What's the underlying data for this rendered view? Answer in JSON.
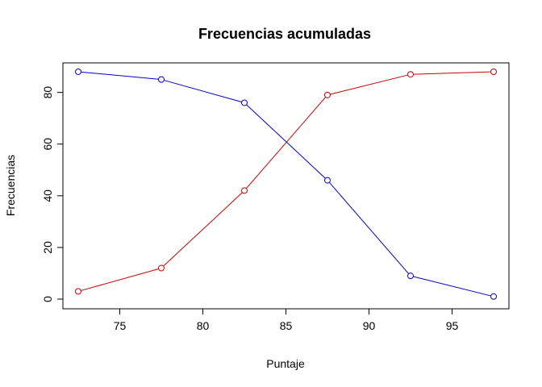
{
  "chart_data": {
    "type": "line",
    "title": "Frecuencias acumuladas",
    "xlabel": "Puntaje",
    "ylabel": "Frecuencias",
    "xlim": [
      72.5,
      97.5
    ],
    "ylim": [
      0,
      88
    ],
    "x_ticks": [
      75,
      80,
      85,
      90,
      95
    ],
    "y_ticks": [
      0,
      20,
      40,
      60,
      80
    ],
    "grid": false,
    "legend": "none",
    "x": [
      72.5,
      77.5,
      82.5,
      87.5,
      92.5,
      97.5
    ],
    "series": [
      {
        "color": "#cc0000",
        "marker": "open-circle",
        "values": [
          3,
          12,
          42,
          79,
          87,
          88
        ]
      },
      {
        "color": "#0000cc",
        "marker": "open-circle",
        "values": [
          88,
          85,
          76,
          46,
          9,
          1
        ]
      }
    ]
  }
}
